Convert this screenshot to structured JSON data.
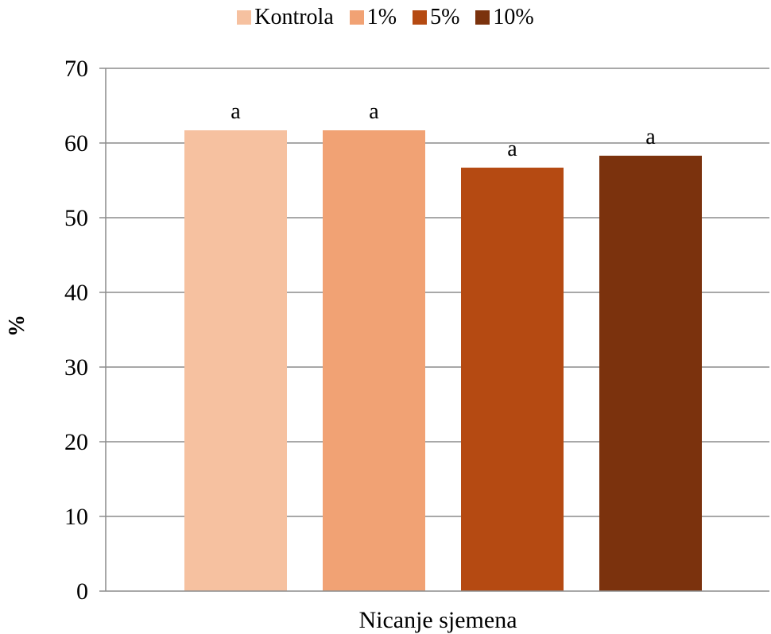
{
  "chart_data": {
    "type": "bar",
    "categories": [
      "Nicanje sjemena"
    ],
    "xlabel": "Nicanje sjemena",
    "ylabel": "%",
    "ylim": [
      0,
      70
    ],
    "yticks": [
      0,
      10,
      20,
      30,
      40,
      50,
      60,
      70
    ],
    "grid": true,
    "legend_position": "top",
    "series": [
      {
        "name": "Kontrola",
        "values": [
          61.7
        ],
        "color": "#F6C1A0",
        "annotation": "a"
      },
      {
        "name": "1%",
        "values": [
          61.7
        ],
        "color": "#F1A274",
        "annotation": "a"
      },
      {
        "name": "5%",
        "values": [
          56.7
        ],
        "color": "#B54A12",
        "annotation": "a"
      },
      {
        "name": "10%",
        "values": [
          58.3
        ],
        "color": "#7B320D",
        "annotation": "a"
      }
    ]
  }
}
